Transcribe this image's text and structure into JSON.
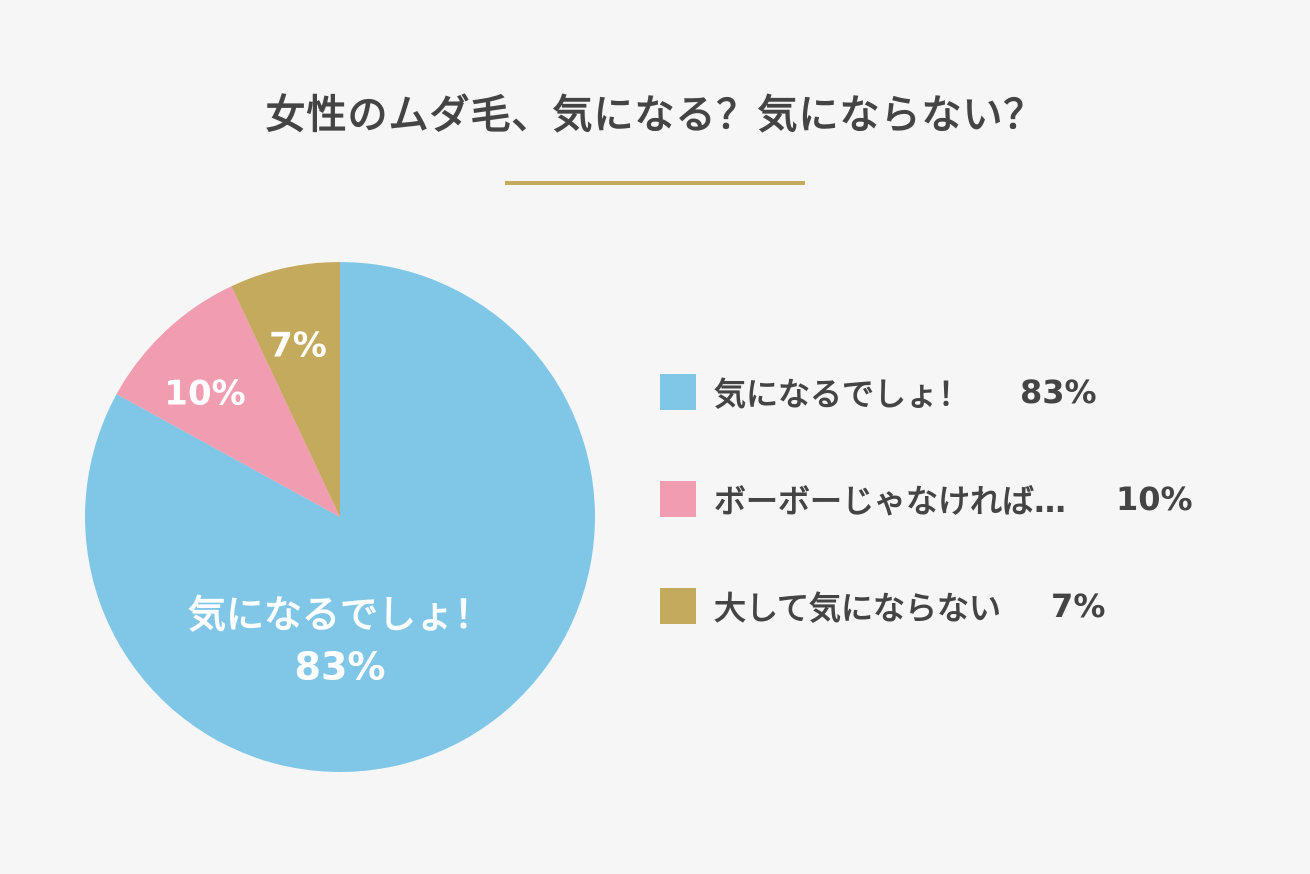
{
  "title": "女性のムダ毛、気になる？気にならない？",
  "colors": {
    "accent": "#c4aa5c",
    "text": "#444444",
    "background": "#f6f6f6"
  },
  "chart_data": {
    "type": "pie",
    "title": "女性のムダ毛、気になる？気にならない？",
    "legend_position": "right",
    "unit": "%",
    "slices": [
      {
        "label": "気になるでしょ！",
        "value": 83,
        "value_label": "83%",
        "color": "#80c7e7"
      },
      {
        "label": "ボーボーじゃなければ…",
        "value": 10,
        "value_label": "10%",
        "color": "#f19db1"
      },
      {
        "label": "大して気にならない",
        "value": 7,
        "value_label": "7%",
        "color": "#c4aa5c"
      }
    ]
  }
}
